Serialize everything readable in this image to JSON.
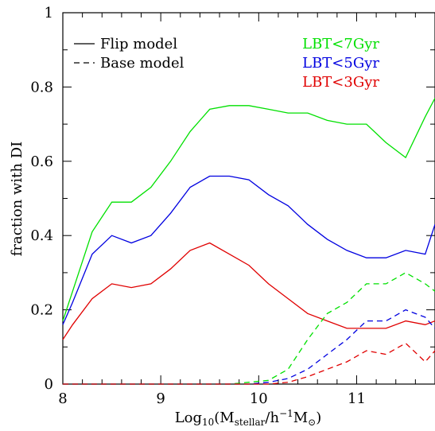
{
  "chart_data": {
    "type": "line",
    "xlabel_parts": {
      "base": "Log",
      "base_sub": "10",
      "open": "(M",
      "stellar_sub": "stellar",
      "middle": "/h",
      "minus_one_sup": "−1",
      "msun": "M",
      "close": ")"
    },
    "ylabel": "fraction with DI",
    "xlim": [
      8,
      11.8
    ],
    "ylim": [
      0,
      1
    ],
    "xticks": [
      8,
      9,
      10,
      11
    ],
    "yticks": [
      0,
      0.2,
      0.4,
      0.6,
      0.8,
      1
    ],
    "ytick_labels": [
      "0",
      "0.2",
      "0.4",
      "0.6",
      "0.8",
      "1"
    ],
    "xtick_labels": [
      "8",
      "9",
      "10",
      "11"
    ],
    "style_legend": [
      {
        "label": "Flip model",
        "dash": "solid"
      },
      {
        "label": "Base model",
        "dash": "dashed"
      }
    ],
    "series": [
      {
        "name": "LBT<7Gyr",
        "model": "Flip model",
        "color": "#00e000",
        "x": [
          8.0,
          8.1,
          8.3,
          8.5,
          8.7,
          8.9,
          9.1,
          9.3,
          9.5,
          9.7,
          9.9,
          10.1,
          10.3,
          10.5,
          10.7,
          10.9,
          11.1,
          11.3,
          11.5,
          11.7,
          11.8
        ],
        "y": [
          0.17,
          0.25,
          0.41,
          0.49,
          0.49,
          0.53,
          0.6,
          0.68,
          0.74,
          0.75,
          0.75,
          0.74,
          0.73,
          0.73,
          0.71,
          0.7,
          0.7,
          0.65,
          0.61,
          0.72,
          0.77
        ]
      },
      {
        "name": "LBT<5Gyr",
        "model": "Flip model",
        "color": "#0000e0",
        "x": [
          8.0,
          8.1,
          8.3,
          8.5,
          8.7,
          8.9,
          9.1,
          9.3,
          9.5,
          9.7,
          9.9,
          10.1,
          10.3,
          10.5,
          10.7,
          10.9,
          11.1,
          11.3,
          11.5,
          11.7,
          11.8
        ],
        "y": [
          0.16,
          0.22,
          0.35,
          0.4,
          0.38,
          0.4,
          0.46,
          0.53,
          0.56,
          0.56,
          0.55,
          0.51,
          0.48,
          0.43,
          0.39,
          0.36,
          0.34,
          0.34,
          0.36,
          0.35,
          0.43
        ]
      },
      {
        "name": "LBT<3Gyr",
        "model": "Flip model",
        "color": "#e00000",
        "x": [
          8.0,
          8.1,
          8.3,
          8.5,
          8.7,
          8.9,
          9.1,
          9.3,
          9.5,
          9.7,
          9.9,
          10.1,
          10.3,
          10.5,
          10.7,
          10.9,
          11.1,
          11.3,
          11.5,
          11.7,
          11.8
        ],
        "y": [
          0.12,
          0.16,
          0.23,
          0.27,
          0.26,
          0.27,
          0.31,
          0.36,
          0.38,
          0.35,
          0.32,
          0.27,
          0.23,
          0.19,
          0.17,
          0.15,
          0.15,
          0.15,
          0.17,
          0.16,
          0.17
        ]
      },
      {
        "name": "LBT<7Gyr",
        "model": "Base model",
        "color": "#00e000",
        "x": [
          8.0,
          9.3,
          9.7,
          9.9,
          10.1,
          10.3,
          10.5,
          10.7,
          10.9,
          11.1,
          11.3,
          11.5,
          11.7,
          11.8
        ],
        "y": [
          0.0,
          0.0,
          0.0,
          0.005,
          0.01,
          0.04,
          0.12,
          0.19,
          0.22,
          0.27,
          0.27,
          0.3,
          0.27,
          0.25
        ]
      },
      {
        "name": "LBT<5Gyr",
        "model": "Base model",
        "color": "#0000e0",
        "x": [
          8.0,
          9.3,
          9.7,
          9.9,
          10.1,
          10.3,
          10.5,
          10.7,
          10.9,
          11.1,
          11.3,
          11.5,
          11.7,
          11.8
        ],
        "y": [
          0.0,
          0.0,
          0.0,
          0.0,
          0.005,
          0.015,
          0.04,
          0.08,
          0.12,
          0.17,
          0.17,
          0.2,
          0.18,
          0.15
        ]
      },
      {
        "name": "LBT<3Gyr",
        "model": "Base model",
        "color": "#e00000",
        "x": [
          8.0,
          9.3,
          9.7,
          9.9,
          10.1,
          10.3,
          10.5,
          10.7,
          10.9,
          11.1,
          11.3,
          11.5,
          11.7,
          11.8
        ],
        "y": [
          0.0,
          0.0,
          0.0,
          0.0,
          0.0,
          0.005,
          0.02,
          0.04,
          0.06,
          0.09,
          0.08,
          0.11,
          0.06,
          0.09
        ]
      }
    ],
    "color_legend": [
      {
        "label": "LBT<7Gyr",
        "color": "#00e000"
      },
      {
        "label": "LBT<5Gyr",
        "color": "#0000e0"
      },
      {
        "label": "LBT<3Gyr",
        "color": "#e00000"
      }
    ],
    "legend_placement": "top (style legend left, color legend right)",
    "grid": false
  }
}
